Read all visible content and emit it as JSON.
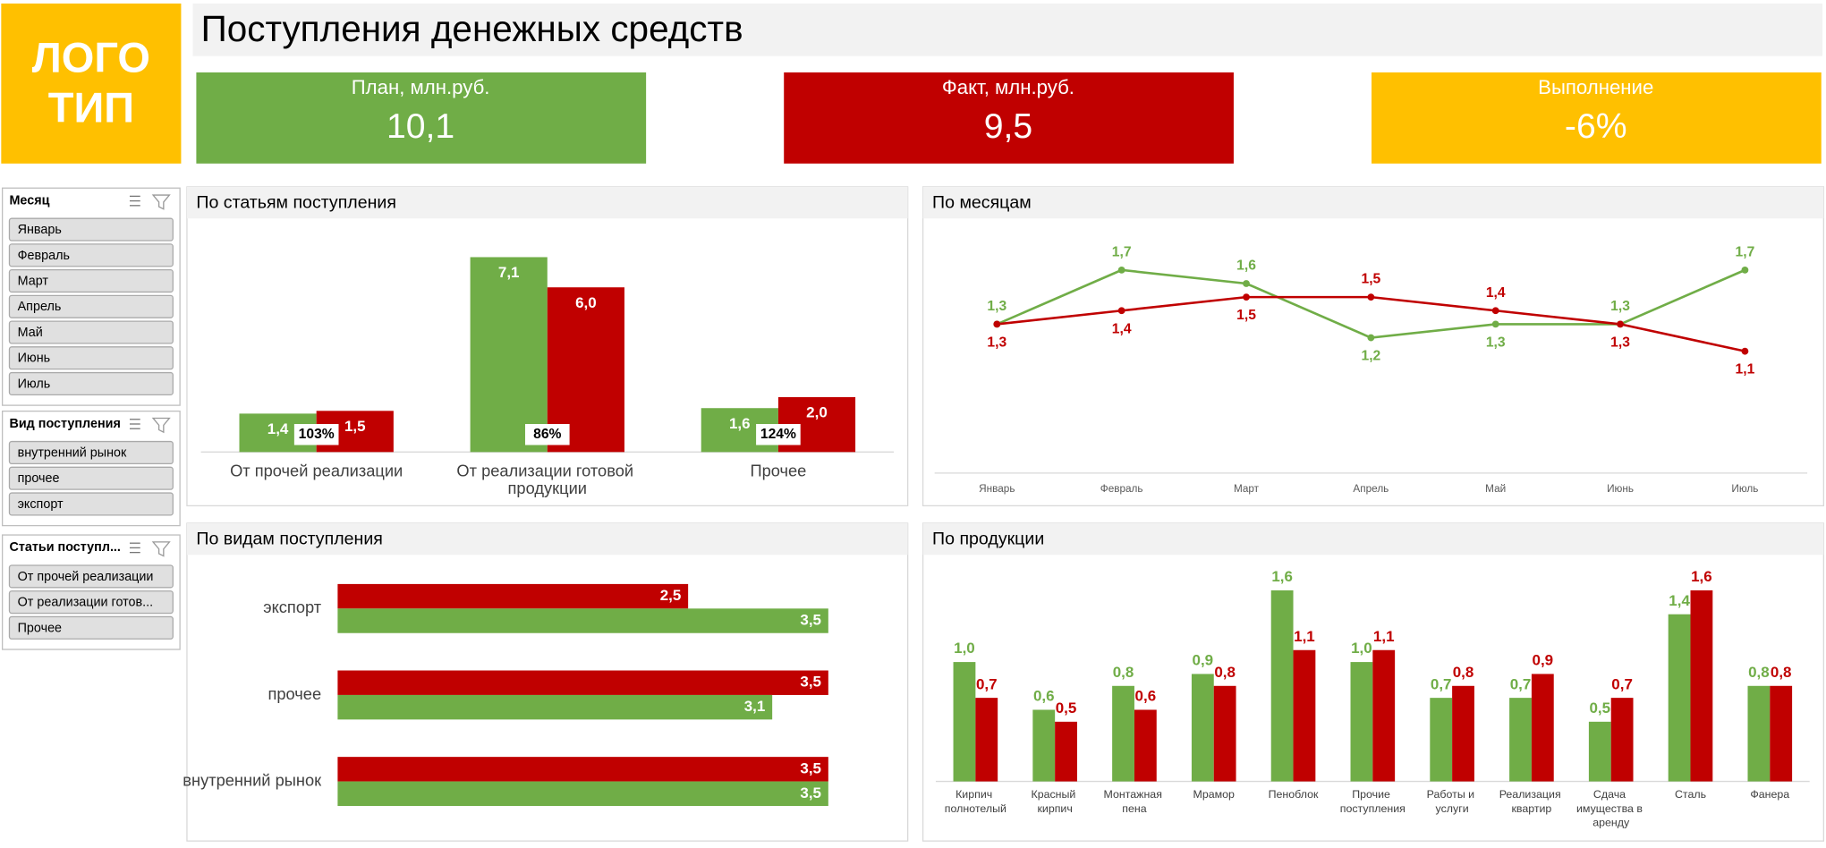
{
  "header": {
    "logo": [
      "ЛОГО",
      "ТИП"
    ],
    "title": "Поступления денежных средств"
  },
  "kpis": [
    {
      "label": "План, млн.руб.",
      "value": "10,1",
      "color": "#70ad47"
    },
    {
      "label": "Факт, млн.руб.",
      "value": "9,5",
      "color": "#c00000"
    },
    {
      "label": "Выполнение",
      "value": "-6%",
      "color": "#ffc000"
    }
  ],
  "slicers": [
    {
      "title": "Месяц",
      "items": [
        "Январь",
        "Февраль",
        "Март",
        "Апрель",
        "Май",
        "Июнь",
        "Июль"
      ]
    },
    {
      "title": "Вид поступления",
      "items": [
        "внутренний рынок",
        "прочее",
        "экспорт"
      ]
    },
    {
      "title": "Статьи поступл...",
      "items": [
        "От прочей реализации",
        "От реализации готов...",
        "Прочее"
      ]
    }
  ],
  "chart_data": [
    {
      "type": "bar",
      "title": "По статьям поступления",
      "label_position": "inside",
      "categories": [
        "От прочей реализации",
        "От реализации готовой продукции",
        "Прочее"
      ],
      "series": [
        {
          "color": "#70ad47",
          "values": [
            1.4,
            7.1,
            1.6
          ],
          "value_labels": [
            "1,4",
            "7,1",
            "1,6"
          ]
        },
        {
          "color": "#c00000",
          "values": [
            1.5,
            6.0,
            2.0
          ],
          "value_labels": [
            "1,5",
            "6,0",
            "2,0"
          ]
        }
      ],
      "annotations": [
        "103%",
        "86%",
        "124%"
      ],
      "ylim": [
        0,
        8
      ]
    },
    {
      "type": "line",
      "title": "По месяцам",
      "categories": [
        "Январь",
        "Февраль",
        "Март",
        "Апрель",
        "Май",
        "Июнь",
        "Июль"
      ],
      "series": [
        {
          "color": "#70ad47",
          "values": [
            1.3,
            1.7,
            1.6,
            1.2,
            1.3,
            1.3,
            1.7
          ],
          "value_labels": [
            "1,3",
            "1,7",
            "1,6",
            "1,2",
            "1,3",
            "1,3",
            "1,7"
          ]
        },
        {
          "color": "#c00000",
          "values": [
            1.3,
            1.4,
            1.5,
            1.5,
            1.4,
            1.3,
            1.1
          ],
          "value_labels": [
            "1,3",
            "1,4",
            "1,5",
            "1,5",
            "1,4",
            "1,3",
            "1,1"
          ]
        }
      ],
      "ylim": [
        0.2,
        1.9
      ]
    },
    {
      "type": "barh",
      "title": "По видам поступления",
      "categories": [
        "экспорт",
        "прочее",
        "внутренний рынок"
      ],
      "series": [
        {
          "color": "#c00000",
          "values": [
            2.5,
            3.5,
            3.5
          ],
          "value_labels": [
            "2,5",
            "3,5",
            "3,5"
          ]
        },
        {
          "color": "#70ad47",
          "values": [
            3.5,
            3.1,
            3.5
          ],
          "value_labels": [
            "3,5",
            "3,1",
            "3,5"
          ]
        }
      ],
      "xlim": [
        0,
        4
      ]
    },
    {
      "type": "bar",
      "title": "По продукции",
      "label_position": "outside",
      "categories": [
        "Кирпич полнотелый",
        "Красный кирпич",
        "Монтажная пена",
        "Мрамор",
        "Пеноблок",
        "Прочие поступления",
        "Работы и услуги",
        "Реализация квартир",
        "Сдача имущества в аренду",
        "Сталь",
        "Фанера"
      ],
      "series": [
        {
          "color": "#70ad47",
          "values": [
            1.0,
            0.6,
            0.8,
            0.9,
            1.6,
            1.0,
            0.7,
            0.7,
            0.5,
            1.4,
            0.8
          ],
          "value_labels": [
            "1,0",
            "0,6",
            "0,8",
            "0,9",
            "1,6",
            "1,0",
            "0,7",
            "0,7",
            "0,5",
            "1,4",
            "0,8"
          ]
        },
        {
          "color": "#c00000",
          "values": [
            0.7,
            0.5,
            0.6,
            0.8,
            1.1,
            1.1,
            0.8,
            0.9,
            0.7,
            1.6,
            0.8
          ],
          "value_labels": [
            "0,7",
            "0,5",
            "0,6",
            "0,8",
            "1,1",
            "1,1",
            "0,8",
            "0,9",
            "0,7",
            "1,6",
            "0,8"
          ]
        }
      ],
      "ylim": [
        0,
        1.8
      ]
    }
  ]
}
